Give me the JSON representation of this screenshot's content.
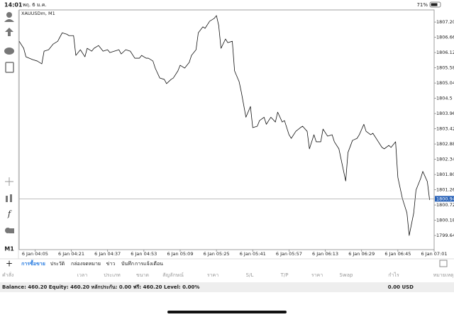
{
  "status_bar": {
    "time": "14:01",
    "date": "พฤ. 6 ม.ค.",
    "battery": "71%"
  },
  "chart_data": {
    "type": "line",
    "title": "XAUUSDm, M1",
    "color": "#111111",
    "x": [
      238,
      240,
      241,
      244,
      246,
      248,
      249,
      251,
      253,
      255,
      257,
      259,
      260,
      262,
      263,
      265,
      267,
      268,
      270,
      271,
      273,
      275,
      277,
      278,
      280,
      282,
      283,
      285,
      287,
      289,
      291,
      292,
      294,
      295,
      297,
      298,
      300,
      302,
      303,
      305,
      306,
      308,
      309,
      311,
      313,
      314,
      316,
      317,
      319,
      320,
      322,
      324,
      325,
      326,
      327,
      329,
      330,
      332,
      333,
      335,
      336,
      338,
      340,
      341,
      343,
      344,
      346,
      347,
      349,
      351,
      352,
      354,
      355,
      357,
      358,
      360,
      362,
      363,
      365,
      366,
      368,
      369,
      371,
      372,
      374,
      376,
      377,
      379,
      380,
      382,
      383,
      385,
      387,
      388,
      390,
      391,
      393,
      394,
      396,
      398,
      399,
      401,
      402,
      404,
      405,
      407,
      409,
      410,
      412,
      413,
      415,
      416,
      418,
      419
    ],
    "values": [
      1806.52,
      1806.27,
      1805.97,
      1805.87,
      1805.82,
      1805.72,
      1806.17,
      1806.22,
      1806.42,
      1806.52,
      1806.82,
      1806.77,
      1806.72,
      1806.72,
      1806.02,
      1806.22,
      1805.97,
      1806.27,
      1806.17,
      1806.27,
      1806.37,
      1806.17,
      1806.22,
      1806.12,
      1806.17,
      1806.22,
      1806.07,
      1806.22,
      1806.17,
      1805.92,
      1805.92,
      1806.02,
      1805.92,
      1805.92,
      1805.82,
      1805.57,
      1805.22,
      1805.17,
      1805.02,
      1805.17,
      1805.22,
      1805.47,
      1805.67,
      1805.57,
      1805.77,
      1806.02,
      1806.22,
      1806.82,
      1807.03,
      1806.98,
      1807.23,
      1807.33,
      1807.43,
      1807.08,
      1806.27,
      1806.6,
      1806.47,
      1806.52,
      1805.47,
      1805.09,
      1804.71,
      1803.83,
      1804.21,
      1803.46,
      1803.51,
      1803.71,
      1803.83,
      1803.58,
      1803.83,
      1803.66,
      1804.01,
      1803.66,
      1803.71,
      1803.21,
      1803.08,
      1803.33,
      1803.46,
      1803.51,
      1803.33,
      1802.71,
      1803.21,
      1802.96,
      1802.96,
      1803.41,
      1803.16,
      1803.21,
      1802.96,
      1802.71,
      1802.33,
      1801.57,
      1802.58,
      1803.01,
      1803.08,
      1803.21,
      1803.58,
      1803.33,
      1803.21,
      1803.26,
      1803.01,
      1802.76,
      1802.71,
      1802.83,
      1802.76,
      1802.96,
      1801.7,
      1800.95,
      1800.44,
      1799.64,
      1800.44,
      1801.25,
      1801.65,
      1801.91,
      1801.55,
      1800.9
    ],
    "last_price": 1800.941,
    "xlim": [
      238,
      421
    ],
    "ylim": [
      1799.14,
      1807.63
    ],
    "yticks": [
      {
        "value": 1807.2,
        "label": "1807.200"
      },
      {
        "value": 1806.66,
        "label": "1806.660"
      },
      {
        "value": 1806.12,
        "label": "1806.120"
      },
      {
        "value": 1805.58,
        "label": "1805.580"
      },
      {
        "value": 1805.04,
        "label": "1805.040"
      },
      1804.5,
      1803.96,
      1803.42,
      1802.88,
      1802.34,
      {
        "value": 1801.8,
        "label": "1801.800"
      },
      1801.26,
      1800.72,
      1800.18,
      1799.64
    ],
    "xticks": [
      {
        "value": 245,
        "label": "6 Jan 04:05"
      },
      {
        "value": 261,
        "label": "6 Jan 04:21"
      },
      {
        "value": 277,
        "label": "6 Jan 04:37"
      },
      {
        "value": 293,
        "label": "6 Jan 04:53"
      },
      {
        "value": 309,
        "label": "6 Jan 05:09"
      },
      {
        "value": 325,
        "label": "6 Jan 05:25"
      },
      {
        "value": 341,
        "label": "6 Jan 05:41"
      },
      {
        "value": 357,
        "label": "6 Jan 05:57"
      },
      {
        "value": 373,
        "label": "6 Jan 06:13"
      },
      {
        "value": 389,
        "label": "6 Jan 06:29"
      },
      {
        "value": 405,
        "label": "6 Jan 06:45"
      },
      {
        "value": 421,
        "label": "6 Jan 07:01"
      }
    ]
  },
  "toolbar": {
    "timeframe": "M1"
  },
  "tabs": [
    "การซื้อขาย",
    "ประวัติ",
    "กล่องจดหมาย",
    "ข่าว",
    "บันทึก",
    "การแจ้งเตือน"
  ],
  "columns": [
    "คำสั่ง",
    "เวลา",
    "ประเภท",
    "ขนาด",
    "สัญลักษณ์",
    "ราคา",
    "S/L",
    "T/P",
    "ราคา",
    "Swap",
    "กำไร",
    "หมายเหตุ"
  ],
  "account": {
    "summary": "Balance: 460.20 Equity: 460.20 หลักประกัน: 0.00 ฟรี: 460.20 Level: 0.00%",
    "profit": "0.00 USD"
  }
}
